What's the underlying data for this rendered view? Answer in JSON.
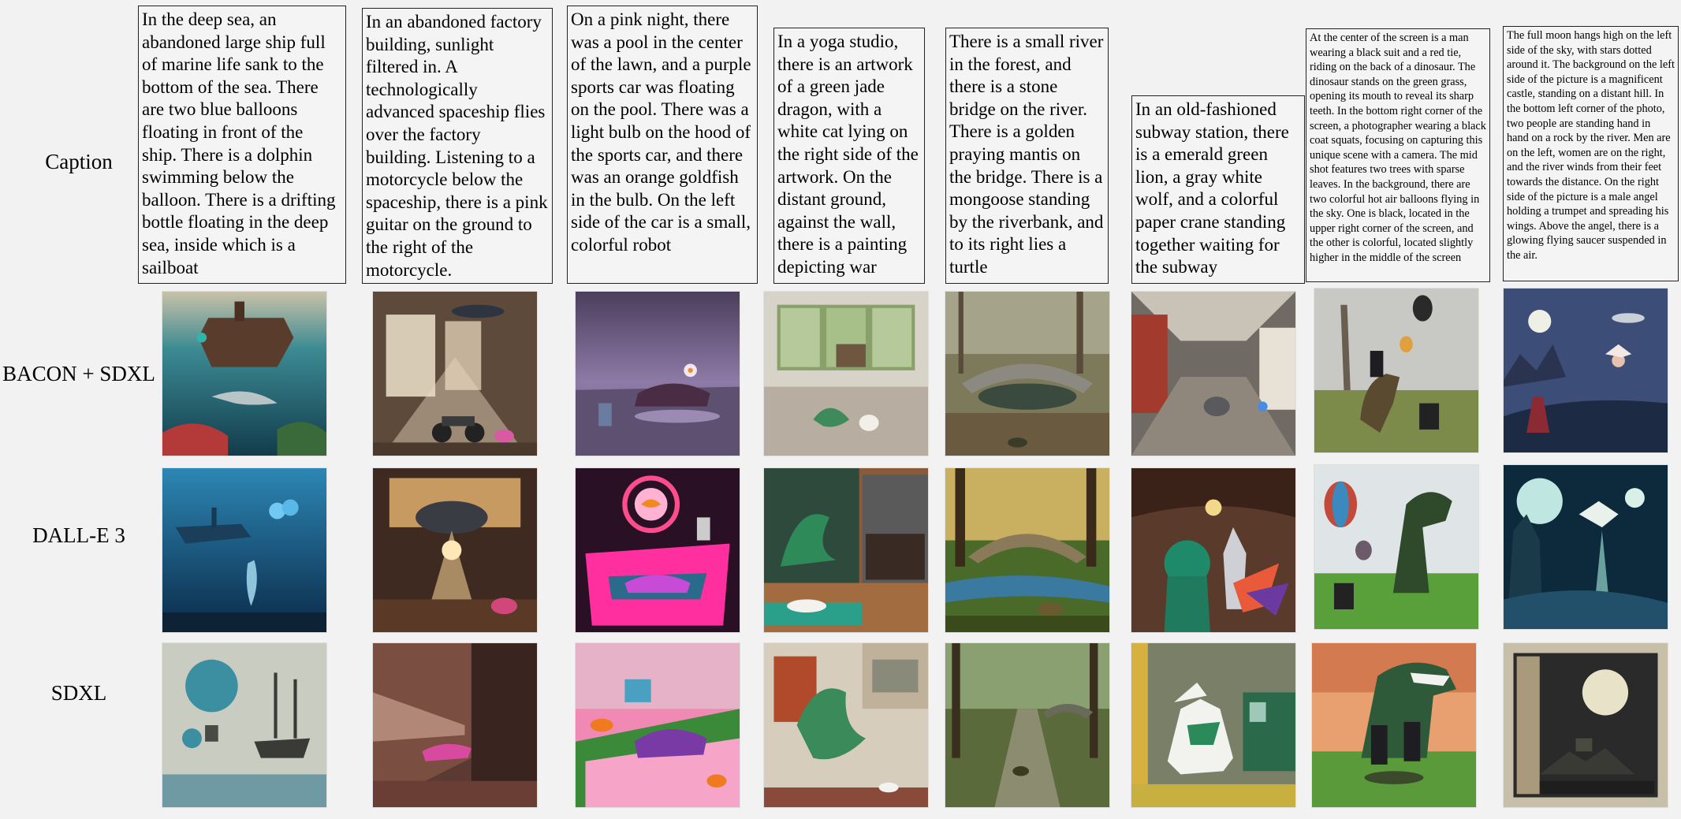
{
  "rows": {
    "caption": "Caption",
    "bacon": "BACON + SDXL",
    "dalle": "DALL-E 3",
    "sdxl": "SDXL"
  },
  "captions": [
    "In the deep sea, an abandoned large ship full of marine life sank to the bottom of the sea. There are two blue balloons floating in front of the ship. There is a dolphin swimming below the balloon. There is a drifting bottle floating in the deep sea, inside which is a sailboat",
    "In an abandoned factory building, sunlight filtered in. A technologically advanced spaceship flies over the factory building. Listening to a motorcycle below the spaceship, there is a pink guitar on the ground to the right of the motorcycle.",
    "On a pink night, there was a pool in the center of the lawn, and a purple sports car was floating on the pool. There was a light bulb on the hood of the sports car, and there was an orange goldfish in the bulb. On the left side of the car is a small, colorful robot",
    "In a yoga studio, there is an artwork of a green jade dragon, with a white cat lying on the right side of the artwork. On the distant ground, against the wall, there is a painting depicting war",
    "There is a small river in the forest, and there is a stone bridge on the river. There is a golden praying mantis on the bridge. There is a mongoose standing by the riverbank, and to its right lies a turtle",
    "In an old-fashioned subway station, there is a emerald green lion, a gray white wolf, and a colorful paper crane standing together waiting for the subway",
    "At the center of the screen is a man wearing a black suit and a red tie, riding on the back of a dinosaur. The dinosaur stands on the green grass, opening its mouth to reveal its sharp teeth. In the bottom right corner of the screen, a photographer wearing a black coat squats, focusing on capturing this unique scene with a camera. The mid shot features two trees with sparse leaves. In the background, there are two colorful hot air balloons flying in the sky. One is black, located in the upper right corner of the screen, and the other is colorful, located slightly higher in the middle of the screen",
    "The full moon hangs high on the left side of the sky, with stars dotted around it. The background on the left side of the picture is a magnificent castle, standing on a distant hill. In the bottom left corner of the photo, two people are standing hand in hand on a rock by the river. Men are on the left, women are on the right, and the river winds from their feet towards the distance. On the right side of the picture is a male angel holding a trumpet and spreading his wings. Above the angel, there is a glowing flying saucer suspended in the air."
  ],
  "image_subjects": {
    "bacon": [
      "sunken-ship-dolphin",
      "factory-motorcycle-guitar",
      "pink-night-car-bulb",
      "yoga-studio-dragon-cat",
      "forest-river-stone-bridge",
      "subway-wolf-crane",
      "man-on-dinosaur-photographer",
      "moon-castle-angel-ufo"
    ],
    "dalle": [
      "deep-sea-ship-blue-balloons",
      "factory-spaceship-motorcycle",
      "neon-bulb-goldfish-car",
      "jade-dragon-artwork-cat",
      "stone-bridge-mongoose-turtle",
      "green-lion-wolf-crane",
      "dinosaur-balloons-photographer",
      "moon-castle-angel"
    ],
    "sdxl": [
      "balloons-sailboat-dolphins",
      "pink-spaceship-factory",
      "purple-car-goldfish",
      "green-dragon-painting-cat",
      "forest-path-bridge",
      "white-wolf-train-station",
      "dinosaur-man-suit",
      "moon-castle-vintage"
    ]
  },
  "colors": {
    "background": "#f2f2f2",
    "border": "#222222"
  }
}
